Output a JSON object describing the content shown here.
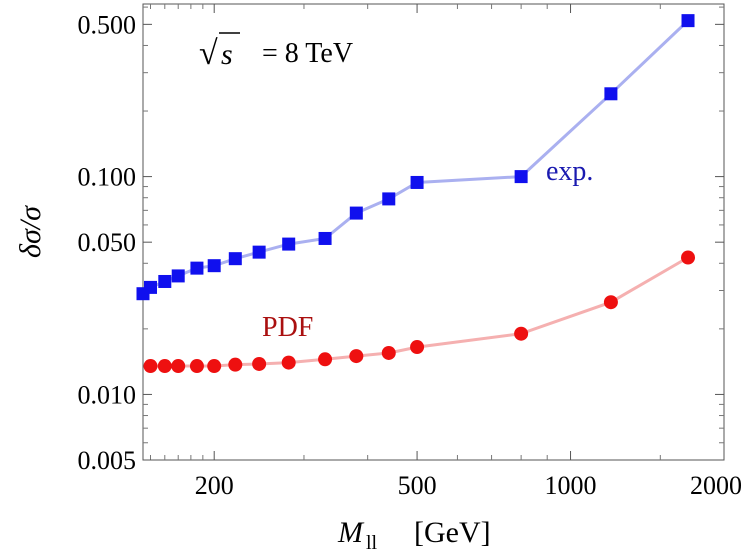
{
  "chart_data": {
    "type": "line",
    "title": "",
    "xlabel": {
      "main": "M",
      "sub": "ll",
      "unit": "[GeV]"
    },
    "ylabel": "δσ/σ",
    "xscale": "log",
    "yscale": "log",
    "xlim": [
      145,
      2000
    ],
    "ylim": [
      0.005,
      0.62
    ],
    "xticks": [
      {
        "value": 200,
        "label": "200"
      },
      {
        "value": 500,
        "label": "500"
      },
      {
        "value": 1000,
        "label": "1000"
      },
      {
        "value": 2000,
        "label": "2000"
      }
    ],
    "yticks": [
      {
        "value": 0.005,
        "label": "0.005"
      },
      {
        "value": 0.01,
        "label": "0.010"
      },
      {
        "value": 0.05,
        "label": "0.050"
      },
      {
        "value": 0.1,
        "label": "0.100"
      },
      {
        "value": 0.5,
        "label": "0.500"
      }
    ],
    "grid": false,
    "annotation": {
      "prefix": "√s",
      "value": "= 8 TeV"
    },
    "series": [
      {
        "name": "exp.",
        "marker": "square",
        "color": "#1010ee",
        "line_color": "#aab0f0",
        "label_color": "#1a1ab0",
        "x": [
          145,
          150,
          160,
          170,
          185,
          200,
          220,
          245,
          280,
          330,
          380,
          440,
          500,
          800,
          1200,
          1700
        ],
        "y": [
          0.029,
          0.031,
          0.033,
          0.035,
          0.038,
          0.039,
          0.042,
          0.045,
          0.049,
          0.052,
          0.068,
          0.079,
          0.094,
          0.1,
          0.24,
          0.52
        ]
      },
      {
        "name": "PDF",
        "marker": "circle",
        "color": "#ee1010",
        "line_color": "#f5b0b0",
        "label_color": "#aa1010",
        "x": [
          150,
          160,
          170,
          185,
          200,
          220,
          245,
          280,
          330,
          380,
          440,
          500,
          800,
          1200,
          1700
        ],
        "y": [
          0.0135,
          0.0135,
          0.0135,
          0.0135,
          0.0135,
          0.0137,
          0.0138,
          0.014,
          0.0145,
          0.015,
          0.0155,
          0.0165,
          0.019,
          0.0265,
          0.0425
        ]
      }
    ]
  }
}
